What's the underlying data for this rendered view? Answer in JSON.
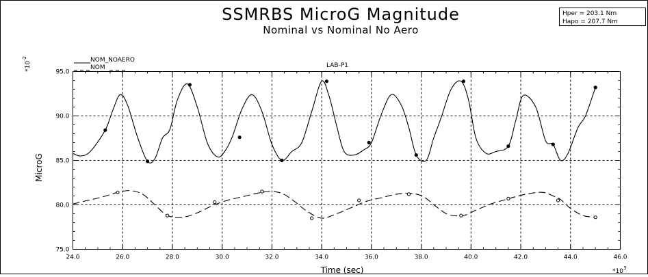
{
  "chart_data": {
    "type": "line",
    "title": "SSMRBS MicroG Magnitude",
    "subtitle": "Nominal vs Nominal No Aero",
    "panel_title": "LAB-P1",
    "info_box": [
      "Hper  =  203.1 Nm",
      "Hapo  =  207.7 Nm"
    ],
    "xlabel": "Time (sec)",
    "ylabel": "MicroG",
    "x_multiplier": "*10^3",
    "y_multiplier": "*10^-2",
    "xlim": [
      24.0,
      46.0
    ],
    "ylim": [
      75.0,
      95.0
    ],
    "xticks": [
      "24.0",
      "26.0",
      "28.0",
      "30.0",
      "32.0",
      "34.0",
      "36.0",
      "38.0",
      "40.0",
      "42.0",
      "44.0",
      "46.0"
    ],
    "yticks": [
      "75.0",
      "80.0",
      "85.0",
      "90.0",
      "95.0"
    ],
    "grid": true,
    "legend_position": "top-left",
    "series": [
      {
        "name": "NOM_NOAERO",
        "style": "solid",
        "x": [
          24.0,
          24.3,
          24.7,
          25.3,
          25.6,
          25.9,
          26.2,
          26.6,
          27.0,
          27.3,
          27.6,
          27.9,
          28.2,
          28.6,
          29.0,
          29.4,
          29.8,
          30.1,
          30.4,
          30.8,
          31.2,
          31.6,
          32.0,
          32.4,
          32.8,
          33.2,
          33.6,
          34.0,
          34.3,
          34.6,
          34.9,
          35.3,
          35.7,
          36.0,
          36.4,
          36.8,
          37.2,
          37.5,
          37.8,
          38.2,
          38.5,
          38.8,
          39.2,
          39.6,
          39.9,
          40.2,
          40.6,
          41.0,
          41.5,
          41.8,
          42.1,
          42.6,
          43.0,
          43.3,
          43.6,
          43.9,
          44.3,
          44.6,
          45.0
        ],
        "y": [
          85.8,
          85.5,
          86.0,
          88.4,
          90.6,
          92.4,
          91.2,
          87.6,
          84.9,
          85.2,
          87.5,
          88.5,
          91.8,
          93.6,
          91.0,
          87.0,
          85.4,
          86.0,
          87.6,
          90.8,
          92.4,
          90.5,
          86.8,
          85.0,
          86.0,
          87.0,
          90.5,
          93.9,
          92.2,
          88.9,
          86.0,
          85.6,
          86.2,
          87.0,
          90.2,
          92.4,
          91.2,
          88.7,
          85.6,
          85.0,
          87.5,
          89.8,
          93.0,
          93.9,
          91.8,
          87.5,
          85.8,
          86.0,
          86.6,
          89.5,
          92.3,
          91.0,
          87.2,
          86.8,
          85.0,
          85.8,
          88.7,
          90.0,
          93.2
        ]
      },
      {
        "name": "NOM",
        "style": "dashed",
        "x": [
          24.0,
          24.6,
          25.2,
          25.8,
          26.3,
          26.8,
          27.3,
          27.8,
          28.4,
          29.0,
          29.6,
          30.2,
          30.8,
          31.4,
          31.9,
          32.4,
          32.9,
          33.4,
          34.0,
          34.6,
          35.2,
          35.8,
          36.4,
          37.0,
          37.6,
          38.1,
          38.6,
          39.1,
          39.7,
          40.2,
          40.8,
          41.4,
          41.9,
          42.4,
          42.9,
          43.3,
          43.6,
          44.0,
          44.5,
          45.0
        ],
        "y": [
          80.1,
          80.5,
          80.9,
          81.4,
          81.6,
          81.2,
          80.0,
          78.8,
          78.6,
          79.1,
          79.9,
          80.5,
          80.9,
          81.3,
          81.5,
          81.3,
          80.4,
          79.3,
          78.5,
          79.0,
          79.7,
          80.4,
          80.8,
          81.2,
          81.3,
          80.9,
          79.8,
          78.9,
          78.8,
          79.4,
          80.1,
          80.6,
          81.0,
          81.3,
          81.4,
          81.0,
          80.6,
          79.6,
          78.8,
          78.6
        ]
      }
    ],
    "markers": [
      {
        "series": 0,
        "x": [
          25.3,
          27.0,
          28.7,
          30.7,
          32.4,
          34.2,
          35.9,
          37.8,
          39.7,
          41.5,
          43.3,
          45.0
        ],
        "y": [
          88.4,
          84.9,
          93.5,
          87.6,
          85.0,
          93.9,
          87.0,
          85.6,
          93.9,
          86.6,
          86.8,
          93.2
        ]
      },
      {
        "series": 1,
        "x": [
          25.8,
          27.8,
          29.7,
          31.6,
          33.6,
          35.5,
          37.5,
          39.6,
          41.5,
          43.5,
          45.0
        ],
        "y": [
          81.4,
          78.8,
          80.3,
          81.5,
          78.5,
          80.5,
          81.2,
          78.8,
          80.7,
          80.5,
          78.6
        ]
      }
    ]
  }
}
